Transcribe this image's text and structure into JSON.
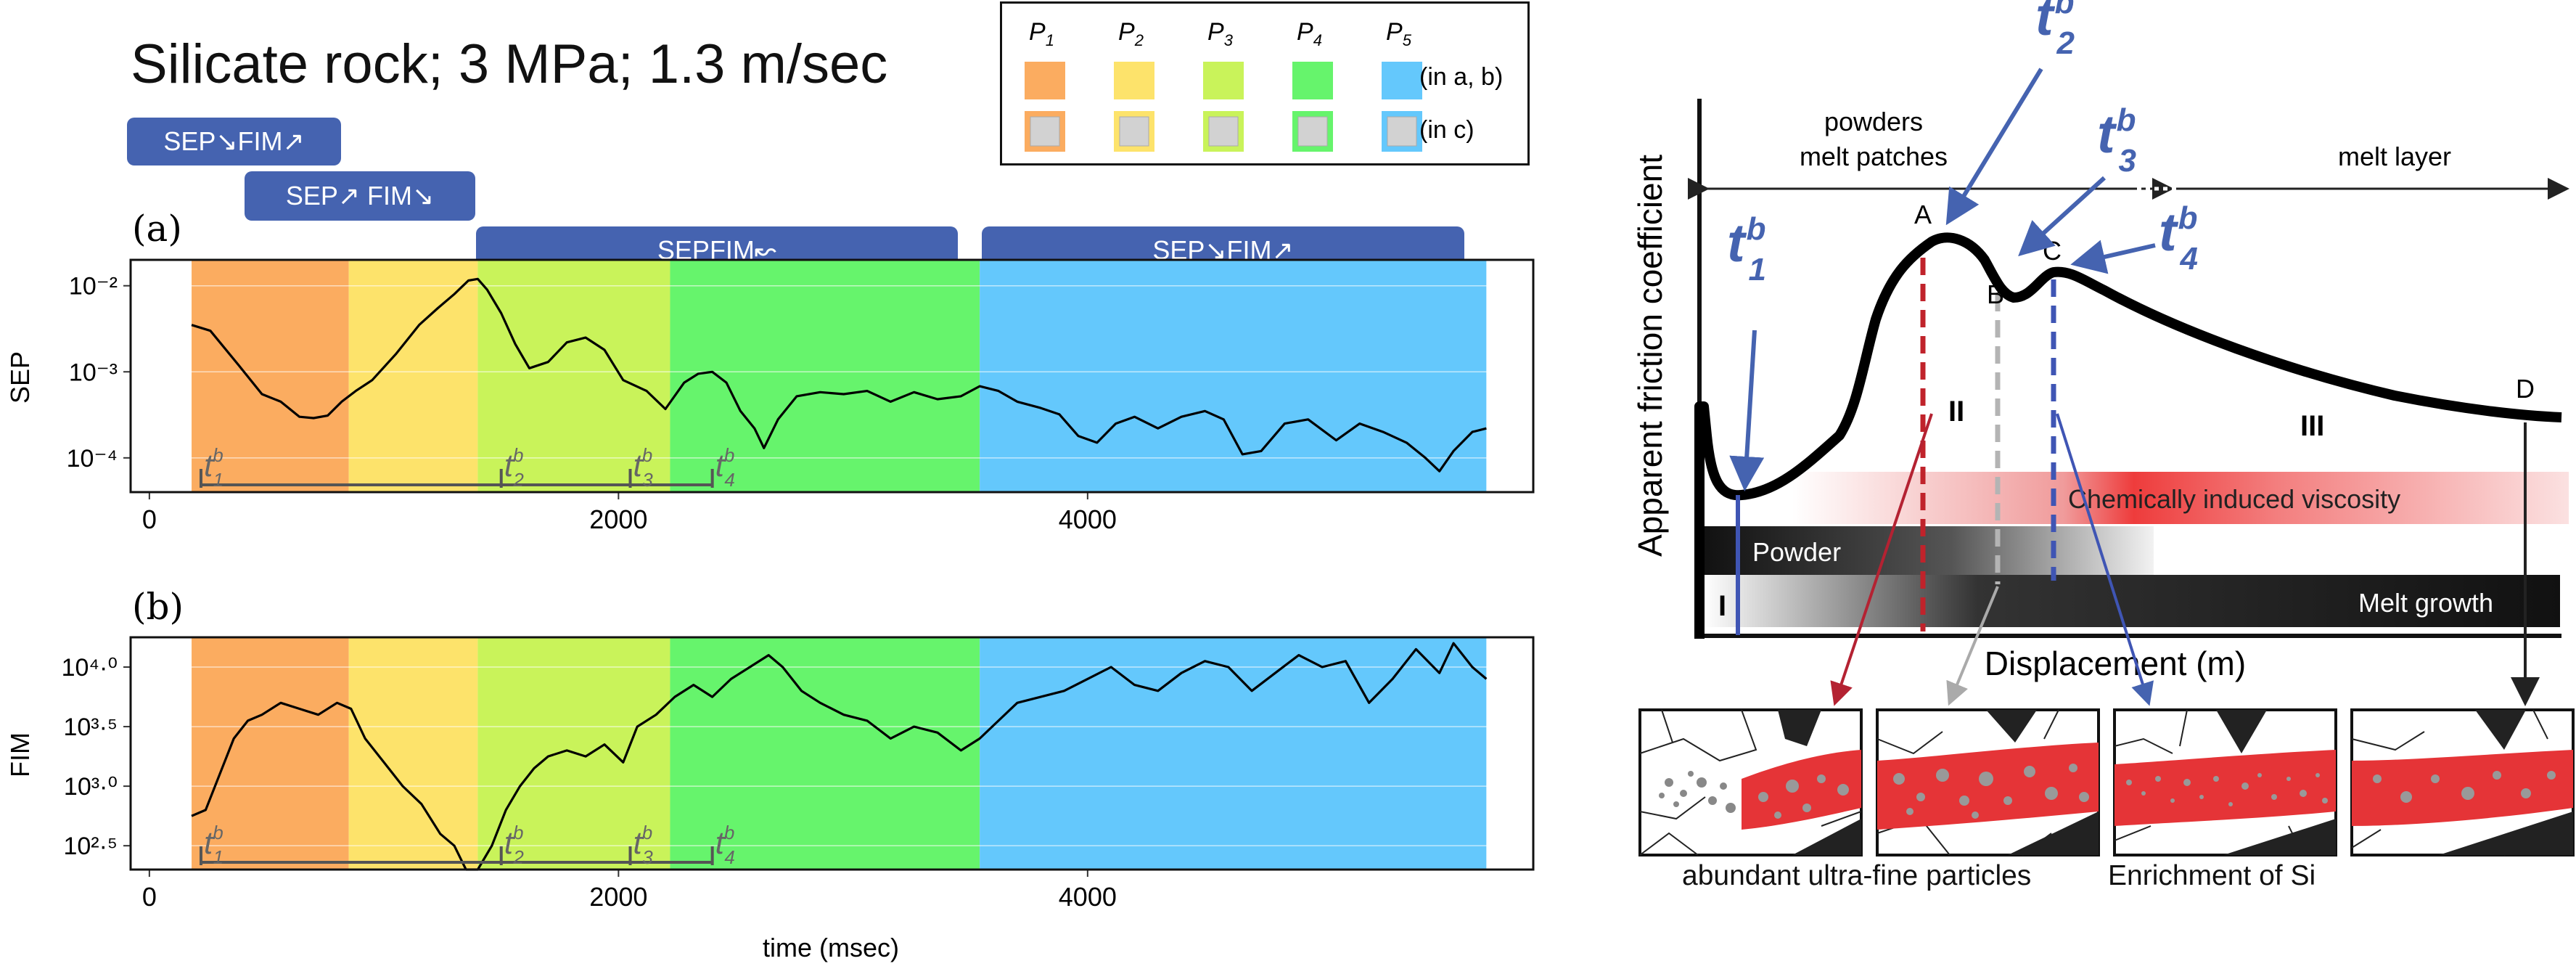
{
  "title": "Silicate rock; 3 MPa; 1.3 m/sec",
  "colors": {
    "P1": "#fbac60",
    "P2": "#fde36b",
    "P3": "#c9f35a",
    "P4": "#66f46c",
    "P5": "#64c8fc",
    "tag": "#4563b0",
    "t_marker": "#4563b0",
    "red_dash": "#c0232b",
    "grey_dash": "#b4b4b4",
    "blue_dash": "#3f55b4"
  },
  "legend": {
    "phases": [
      "P1",
      "P2",
      "P3",
      "P4",
      "P5"
    ],
    "row1_label": "(in a, b)",
    "row2_label": "(in c)"
  },
  "tags": {
    "tag1": "SEP↘FIM↗",
    "tag2": "SEP↗ FIM↘",
    "tag3": "SEPFIM↜",
    "tag4": "SEP↘FIM↗"
  },
  "panel_labels": {
    "a": "(a)",
    "b": "(b)"
  },
  "t_marks": [
    "t1b",
    "t2b",
    "t3b",
    "t4b"
  ],
  "chart_data": [
    {
      "type": "line",
      "panel": "(a)",
      "ylabel": "SEP",
      "yscale": "log",
      "ylim": [
        4e-05,
        0.02
      ],
      "yticks": [
        "10⁻⁴",
        "10⁻³",
        "10⁻²"
      ],
      "ytick_values": [
        0.0001,
        0.001,
        0.01
      ],
      "xlim": [
        -80,
        5900
      ],
      "xticks": [
        0,
        2000,
        4000
      ],
      "phases": [
        {
          "name": "P1",
          "start": 180,
          "end": 850
        },
        {
          "name": "P2",
          "start": 850,
          "end": 1400
        },
        {
          "name": "P3",
          "start": 1400,
          "end": 2220
        },
        {
          "name": "P4",
          "start": 2220,
          "end": 3540
        },
        {
          "name": "P5",
          "start": 3540,
          "end": 5700
        }
      ],
      "t_markers": [
        {
          "label": "t1",
          "x": 220
        },
        {
          "label": "t2",
          "x": 1500
        },
        {
          "label": "t3",
          "x": 2050
        },
        {
          "label": "t4",
          "x": 2400
        }
      ],
      "series": [
        {
          "x": [
            180,
            260,
            380,
            480,
            560,
            640,
            700,
            760,
            820,
            880,
            950,
            1050,
            1150,
            1230,
            1300,
            1360,
            1400,
            1440,
            1500,
            1560,
            1620,
            1700,
            1780,
            1860,
            1940,
            2020,
            2120,
            2200,
            2280,
            2340,
            2400,
            2460,
            2520,
            2580,
            2620,
            2680,
            2760,
            2860,
            2960,
            3060,
            3160,
            3260,
            3360,
            3460,
            3540,
            3620,
            3700,
            3800,
            3880,
            3960,
            4040,
            4120,
            4200,
            4300,
            4400,
            4500,
            4580,
            4660,
            4740,
            4840,
            4940,
            5060,
            5160,
            5260,
            5360,
            5440,
            5500,
            5560,
            5640,
            5700
          ],
          "y": [
            0.0035,
            0.003,
            0.0012,
            0.00055,
            0.00045,
            0.0003,
            0.00029,
            0.00031,
            0.00045,
            0.0006,
            0.0008,
            0.0016,
            0.0035,
            0.0055,
            0.008,
            0.0115,
            0.012,
            0.009,
            0.0048,
            0.0021,
            0.0011,
            0.0013,
            0.0022,
            0.0025,
            0.0018,
            0.0008,
            0.0006,
            0.00037,
            0.00075,
            0.00095,
            0.001,
            0.00075,
            0.00035,
            0.00022,
            0.00013,
            0.00028,
            0.00052,
            0.00058,
            0.00055,
            0.0006,
            0.00045,
            0.00058,
            0.00048,
            0.00052,
            0.00068,
            0.0006,
            0.00045,
            0.00038,
            0.00032,
            0.00018,
            0.00015,
            0.00025,
            0.0003,
            0.00022,
            0.0003,
            0.00035,
            0.00028,
            0.00011,
            0.00012,
            0.00025,
            0.00028,
            0.00016,
            0.00025,
            0.0002,
            0.00015,
            0.0001,
            7e-05,
            0.00012,
            0.0002,
            0.00022
          ]
        }
      ]
    },
    {
      "type": "line",
      "panel": "(b)",
      "ylabel": "FIM",
      "yscale": "log",
      "ylim": [
        2.3,
        4.25
      ],
      "yticks": [
        "10²·⁵",
        "10³·⁰",
        "10³·⁵",
        "10⁴·⁰"
      ],
      "ytick_values": [
        2.5,
        3.0,
        3.5,
        4.0
      ],
      "xlabel": "time (msec)",
      "xlim": [
        -80,
        5900
      ],
      "xticks": [
        0,
        2000,
        4000
      ],
      "t_markers": [
        {
          "label": "t1",
          "x": 220
        },
        {
          "label": "t2",
          "x": 1500
        },
        {
          "label": "t3",
          "x": 2050
        },
        {
          "label": "t4",
          "x": 2400
        }
      ],
      "series": [
        {
          "x": [
            180,
            240,
            300,
            360,
            420,
            480,
            560,
            640,
            720,
            800,
            860,
            920,
            1000,
            1080,
            1160,
            1240,
            1300,
            1350,
            1400,
            1460,
            1520,
            1580,
            1640,
            1700,
            1780,
            1860,
            1940,
            2020,
            2080,
            2160,
            2240,
            2320,
            2400,
            2480,
            2560,
            2640,
            2700,
            2780,
            2860,
            2960,
            3060,
            3160,
            3260,
            3360,
            3460,
            3540,
            3620,
            3700,
            3800,
            3900,
            4000,
            4100,
            4200,
            4300,
            4400,
            4500,
            4600,
            4700,
            4800,
            4900,
            5000,
            5100,
            5200,
            5300,
            5400,
            5500,
            5560,
            5640,
            5700
          ],
          "y": [
            2.75,
            2.8,
            3.1,
            3.4,
            3.55,
            3.6,
            3.7,
            3.65,
            3.6,
            3.7,
            3.65,
            3.4,
            3.2,
            3.0,
            2.85,
            2.6,
            2.5,
            2.3,
            2.3,
            2.5,
            2.8,
            3.0,
            3.15,
            3.25,
            3.3,
            3.25,
            3.35,
            3.2,
            3.5,
            3.6,
            3.75,
            3.85,
            3.75,
            3.9,
            4.0,
            4.1,
            4.0,
            3.8,
            3.7,
            3.6,
            3.55,
            3.4,
            3.5,
            3.45,
            3.3,
            3.4,
            3.55,
            3.7,
            3.75,
            3.8,
            3.9,
            4.0,
            3.85,
            3.8,
            3.95,
            4.05,
            4.0,
            3.8,
            3.95,
            4.1,
            4.0,
            4.05,
            3.7,
            3.9,
            4.15,
            3.95,
            4.2,
            4.0,
            3.9
          ]
        }
      ]
    },
    {
      "type": "line",
      "panel": "(c)",
      "ylabel": "Apparent friction coefficient",
      "xlabel": "Displacement (m)",
      "points": [
        {
          "label": "A"
        },
        {
          "label": "B"
        },
        {
          "label": "C"
        },
        {
          "label": "D"
        }
      ],
      "regions": [
        "I",
        "II",
        "III"
      ],
      "annotations": {
        "powders": "powders",
        "melt_patches": "melt patches",
        "melt_layer": "melt layer",
        "viscosity": "Chemically induced viscosity",
        "powder_bar": "Powder",
        "melt_bar": "Melt growth"
      },
      "captions": [
        "abundant ultra-fine particles",
        "Enrichment of Si"
      ]
    }
  ]
}
